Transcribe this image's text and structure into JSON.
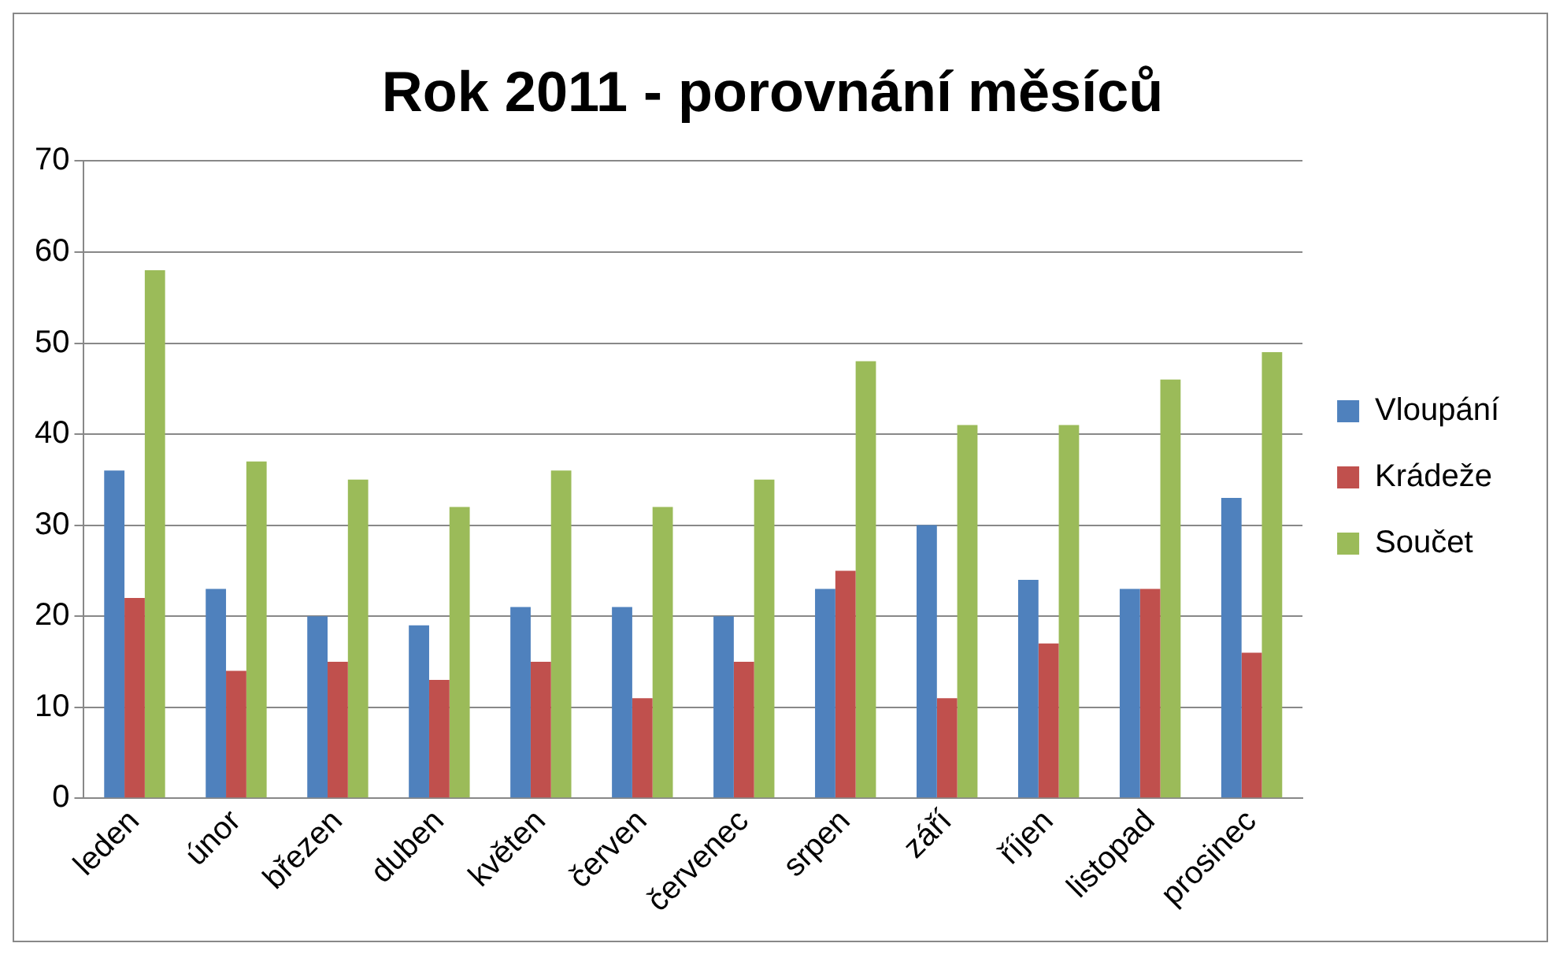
{
  "chart_data": {
    "type": "bar",
    "title": "Rok 2011 - porovnání měsíců",
    "categories": [
      "leden",
      "únor",
      "březen",
      "duben",
      "květen",
      "červen",
      "červenec",
      "srpen",
      "září",
      "říjen",
      "listopad",
      "prosinec"
    ],
    "series": [
      {
        "name": "Vloupání",
        "color": "#4f81bd",
        "values": [
          36,
          23,
          20,
          19,
          21,
          21,
          20,
          23,
          30,
          24,
          23,
          33
        ]
      },
      {
        "name": "Krádeže",
        "color": "#c0504d",
        "values": [
          22,
          14,
          15,
          13,
          15,
          11,
          15,
          25,
          11,
          17,
          23,
          16
        ]
      },
      {
        "name": "Součet",
        "color": "#9bbb59",
        "values": [
          58,
          37,
          35,
          32,
          36,
          32,
          35,
          48,
          41,
          41,
          46,
          49
        ]
      }
    ],
    "ylim": [
      0,
      70
    ],
    "yticks": [
      0,
      10,
      20,
      30,
      40,
      50,
      60,
      70
    ],
    "grid": "y",
    "legend": "right"
  }
}
